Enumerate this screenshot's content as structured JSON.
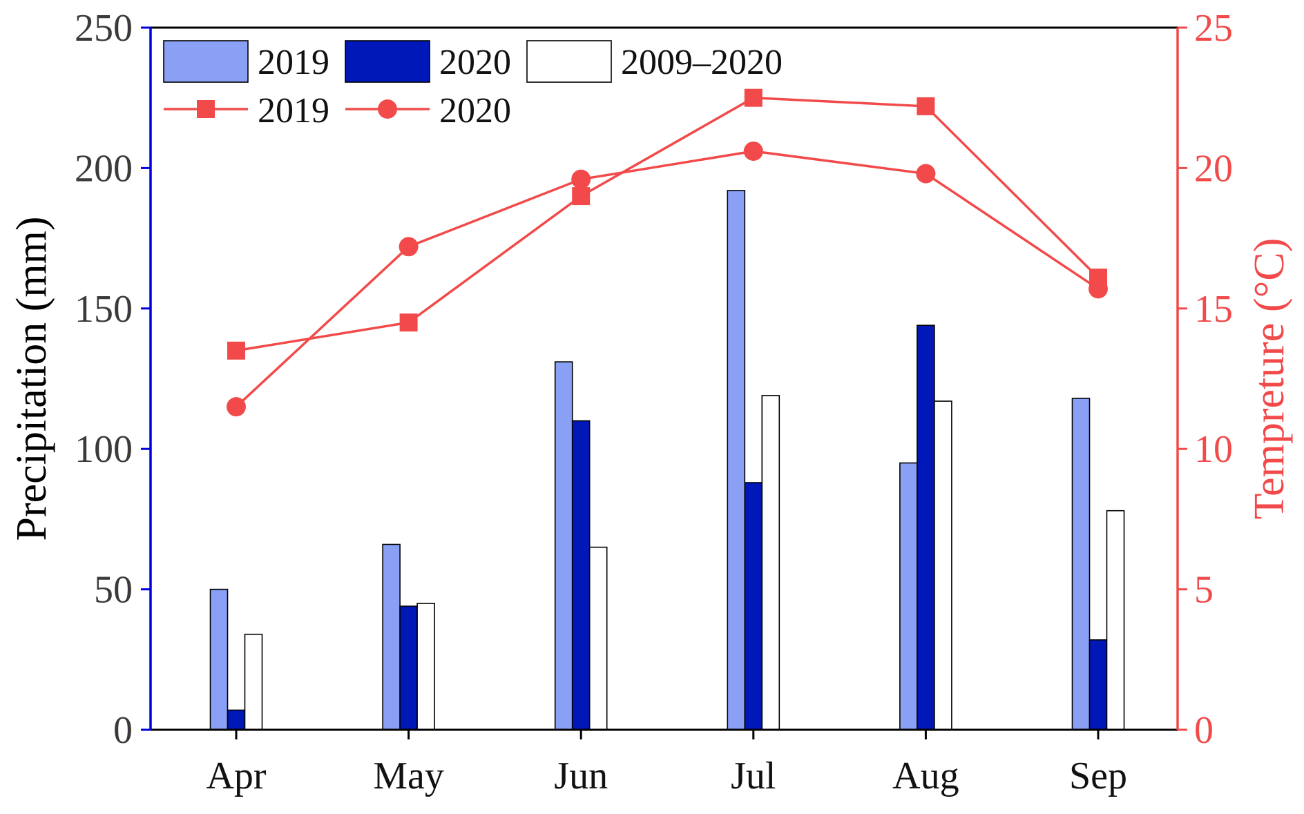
{
  "chart_data": {
    "type": "bar",
    "categories": [
      "Apr",
      "May",
      "Jun",
      "Jul",
      "Aug",
      "Sep"
    ],
    "ylabel": "Precipitation (mm)",
    "y2label": "Tempreture (°C)",
    "ylim": [
      0,
      250
    ],
    "y2lim": [
      0,
      25
    ],
    "yticks": [
      "0",
      "50",
      "100",
      "150",
      "200",
      "250"
    ],
    "y2ticks": [
      "0",
      "5",
      "10",
      "15",
      "20",
      "25"
    ],
    "grid": false,
    "legend_position": "top-left",
    "bar_series": [
      {
        "name": "2019",
        "values": [
          50,
          66,
          131,
          192,
          95,
          118
        ],
        "color": "#8aa0f5"
      },
      {
        "name": "2020",
        "values": [
          7,
          44,
          110,
          88,
          144,
          32
        ],
        "color": "#0018b8"
      },
      {
        "name": "2009–2020",
        "values": [
          34,
          45,
          65,
          119,
          117,
          78
        ],
        "color": "#ffffff"
      }
    ],
    "line_series": [
      {
        "name": "2019",
        "marker": "square",
        "values": [
          13.5,
          14.5,
          19.0,
          22.5,
          22.2,
          16.1
        ],
        "color": "#f24a4a"
      },
      {
        "name": "2020",
        "marker": "circle",
        "values": [
          11.5,
          17.2,
          19.6,
          20.6,
          19.8,
          15.7
        ],
        "color": "#f24a4a"
      }
    ],
    "left_axis_color": "#0000e0",
    "right_axis_color": "#f24a4a"
  }
}
